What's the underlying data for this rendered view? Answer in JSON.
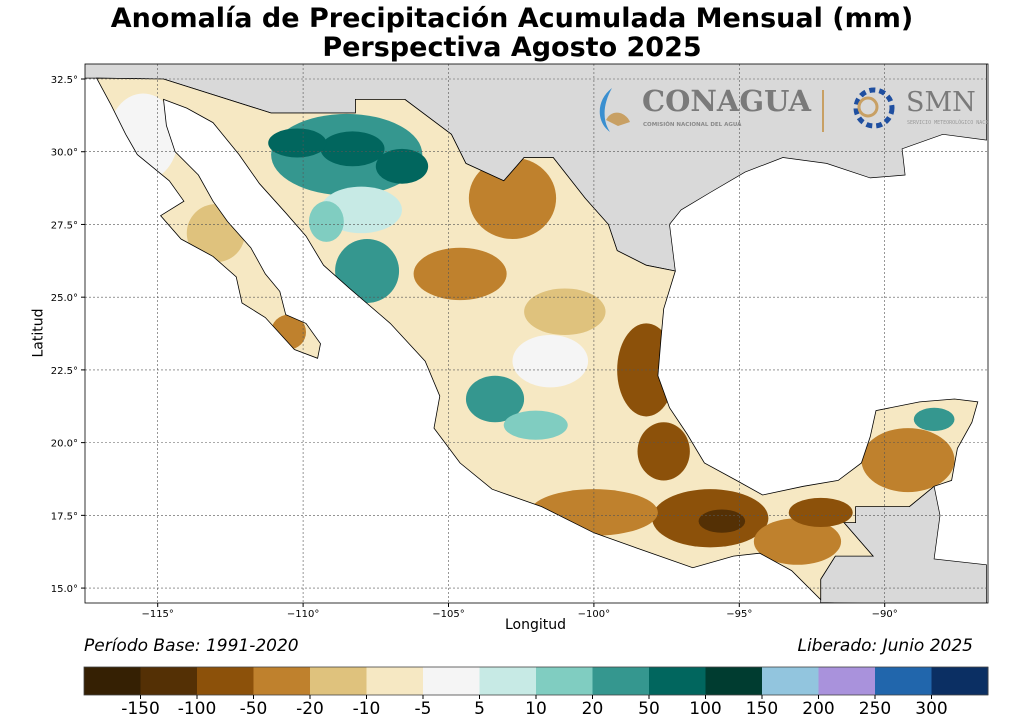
{
  "title": "Anomalía de Precipitación Acumulada Mensual (mm)",
  "subtitle": "Perspectiva Agosto 2025",
  "footer": {
    "base_period": "Período Base: 1991-2020",
    "released": "Liberado: Junio 2025"
  },
  "logos": {
    "conagua": "CONAGUA",
    "conagua_sub": "COMISIÓN NACIONAL DEL AGUA",
    "smn": "SMN",
    "smn_sub": "SERVICIO METEOROLÓGICO NACIONAL"
  },
  "axes": {
    "xlabel": "Longitud",
    "ylabel": "Latitud",
    "x_ticks": [
      "−115°",
      "−110°",
      "−105°",
      "−100°",
      "−95°",
      "−90°"
    ],
    "x_tick_values": [
      -115,
      -110,
      -105,
      -100,
      -95,
      -90
    ],
    "y_ticks": [
      "15.0°",
      "17.5°",
      "20.0°",
      "22.5°",
      "25.0°",
      "27.5°",
      "30.0°",
      "32.5°"
    ],
    "y_tick_values": [
      15,
      17.5,
      20,
      22.5,
      25,
      27.5,
      30,
      32.5
    ],
    "lon_range": [
      -117.5,
      -86.5
    ],
    "lat_range": [
      14.5,
      33.0
    ],
    "grid": true
  },
  "colorbar": {
    "labels": [
      "-150",
      "-100",
      "-50",
      "-20",
      "-10",
      "-5",
      "5",
      "10",
      "20",
      "50",
      "100",
      "150",
      "200",
      "250",
      "300"
    ],
    "colors": [
      "#352003",
      "#543005",
      "#8c510a",
      "#bf812d",
      "#dfc27d",
      "#f6e8c3",
      "#f5f5f5",
      "#c7eae5",
      "#80cdc1",
      "#35978f",
      "#01665e",
      "#003c30",
      "#92c5de",
      "#a992dc",
      "#2166ac",
      "#0b2f63"
    ]
  },
  "colors": {
    "ocean": "#ffffff",
    "other_land": "#d9d9d9"
  },
  "anomaly_regions": [
    {
      "lon": -108.5,
      "lat": 29.9,
      "rlon": 2.6,
      "rlat": 1.4,
      "color": "#35978f"
    },
    {
      "lon": -108.3,
      "lat": 30.1,
      "rlon": 1.1,
      "rlat": 0.6,
      "color": "#01665e"
    },
    {
      "lon": -106.6,
      "lat": 29.5,
      "rlon": 0.9,
      "rlat": 0.6,
      "color": "#01665e"
    },
    {
      "lon": -110.2,
      "lat": 30.3,
      "rlon": 1.0,
      "rlat": 0.5,
      "color": "#01665e"
    },
    {
      "lon": -108.0,
      "lat": 28.0,
      "rlon": 1.4,
      "rlat": 0.8,
      "color": "#c7eae5"
    },
    {
      "lon": -107.8,
      "lat": 25.9,
      "rlon": 1.1,
      "rlat": 1.1,
      "color": "#35978f"
    },
    {
      "lon": -109.2,
      "lat": 27.6,
      "rlon": 0.6,
      "rlat": 0.7,
      "color": "#80cdc1"
    },
    {
      "lon": -102.8,
      "lat": 28.4,
      "rlon": 1.5,
      "rlat": 1.4,
      "color": "#bf812d"
    },
    {
      "lon": -104.6,
      "lat": 25.8,
      "rlon": 1.6,
      "rlat": 0.9,
      "color": "#bf812d"
    },
    {
      "lon": -101.0,
      "lat": 24.5,
      "rlon": 1.4,
      "rlat": 0.8,
      "color": "#dfc27d"
    },
    {
      "lon": -101.5,
      "lat": 22.8,
      "rlon": 1.3,
      "rlat": 0.9,
      "color": "#f5f5f5"
    },
    {
      "lon": -103.4,
      "lat": 21.5,
      "rlon": 1.0,
      "rlat": 0.8,
      "color": "#35978f"
    },
    {
      "lon": -102.0,
      "lat": 20.6,
      "rlon": 1.1,
      "rlat": 0.5,
      "color": "#80cdc1"
    },
    {
      "lon": -98.2,
      "lat": 22.5,
      "rlon": 1.0,
      "rlat": 1.6,
      "color": "#8c510a"
    },
    {
      "lon": -97.6,
      "lat": 19.7,
      "rlon": 0.9,
      "rlat": 1.0,
      "color": "#8c510a"
    },
    {
      "lon": -96.0,
      "lat": 17.4,
      "rlon": 2.0,
      "rlat": 1.0,
      "color": "#8c510a"
    },
    {
      "lon": -95.6,
      "lat": 17.3,
      "rlon": 0.8,
      "rlat": 0.4,
      "color": "#543005"
    },
    {
      "lon": -100.0,
      "lat": 17.6,
      "rlon": 2.2,
      "rlat": 0.8,
      "color": "#bf812d"
    },
    {
      "lon": -93.0,
      "lat": 16.6,
      "rlon": 1.5,
      "rlat": 0.8,
      "color": "#bf812d"
    },
    {
      "lon": -92.2,
      "lat": 17.6,
      "rlon": 1.1,
      "rlat": 0.5,
      "color": "#8c510a"
    },
    {
      "lon": -89.2,
      "lat": 19.4,
      "rlon": 1.6,
      "rlat": 1.1,
      "color": "#bf812d"
    },
    {
      "lon": -88.3,
      "lat": 20.8,
      "rlon": 0.7,
      "rlat": 0.4,
      "color": "#35978f"
    },
    {
      "lon": -113.0,
      "lat": 27.2,
      "rlon": 1.0,
      "rlat": 1.0,
      "color": "#dfc27d"
    },
    {
      "lon": -110.5,
      "lat": 23.8,
      "rlon": 0.6,
      "rlat": 0.6,
      "color": "#bf812d"
    },
    {
      "lon": -115.5,
      "lat": 30.5,
      "rlon": 1.2,
      "rlat": 1.5,
      "color": "#f5f5f5"
    }
  ]
}
